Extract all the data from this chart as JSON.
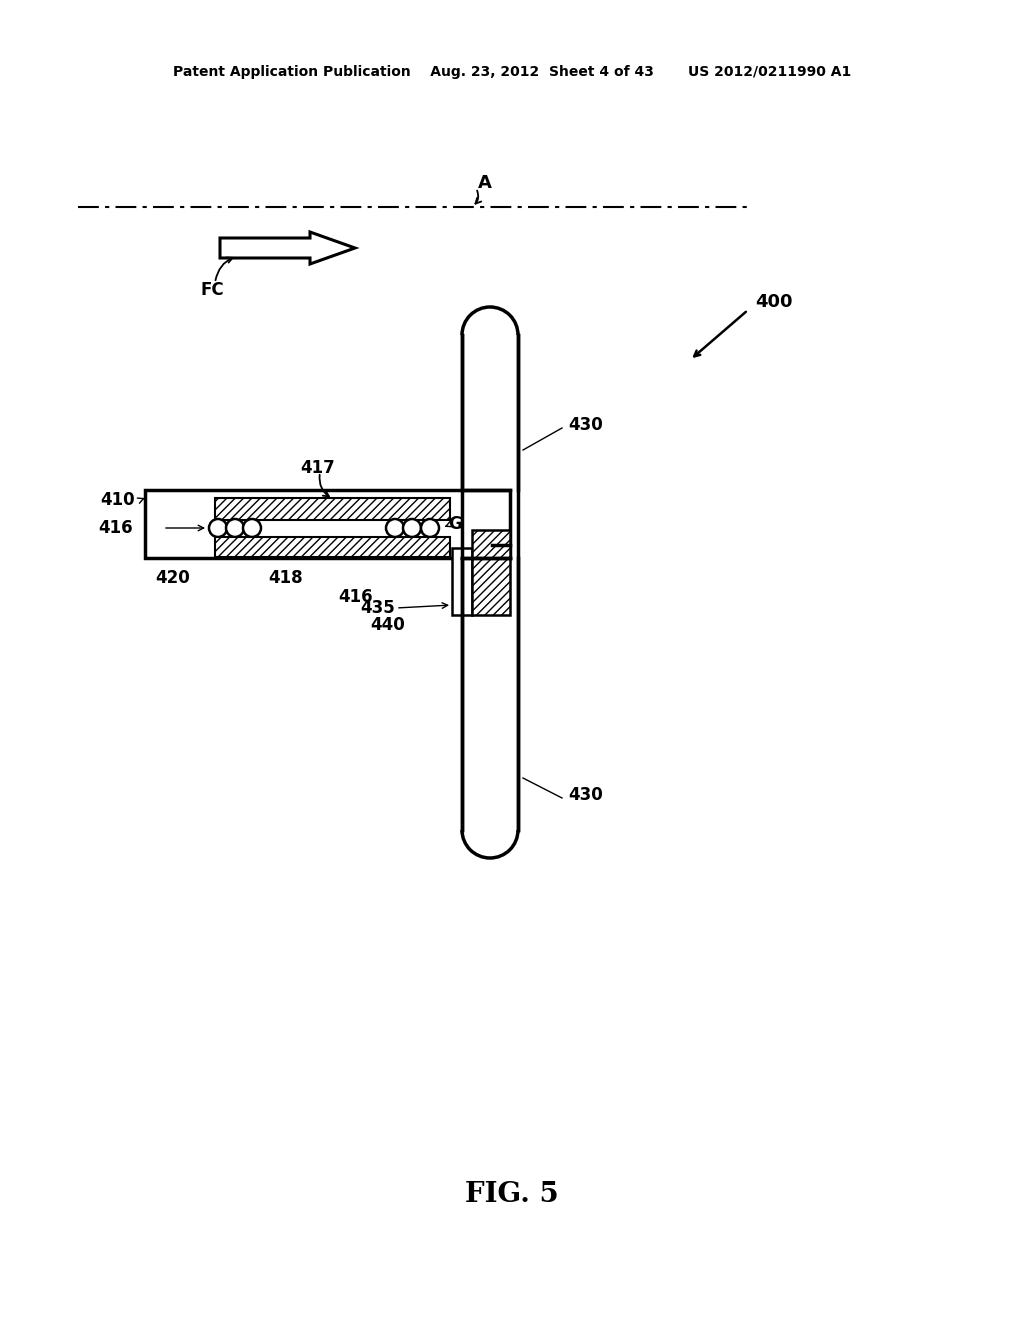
{
  "bg_color": "#ffffff",
  "lc": "#000000",
  "header": "Patent Application Publication    Aug. 23, 2012  Sheet 4 of 43       US 2012/0211990 A1",
  "fig_label": "FIG. 5",
  "labels": {
    "A": "A",
    "FC": "FC",
    "400": "400",
    "430": "430",
    "410": "410",
    "417": "417",
    "416a": "416",
    "416b": "416",
    "418": "418",
    "420": "420",
    "435": "435",
    "440": "440",
    "G": "G"
  }
}
